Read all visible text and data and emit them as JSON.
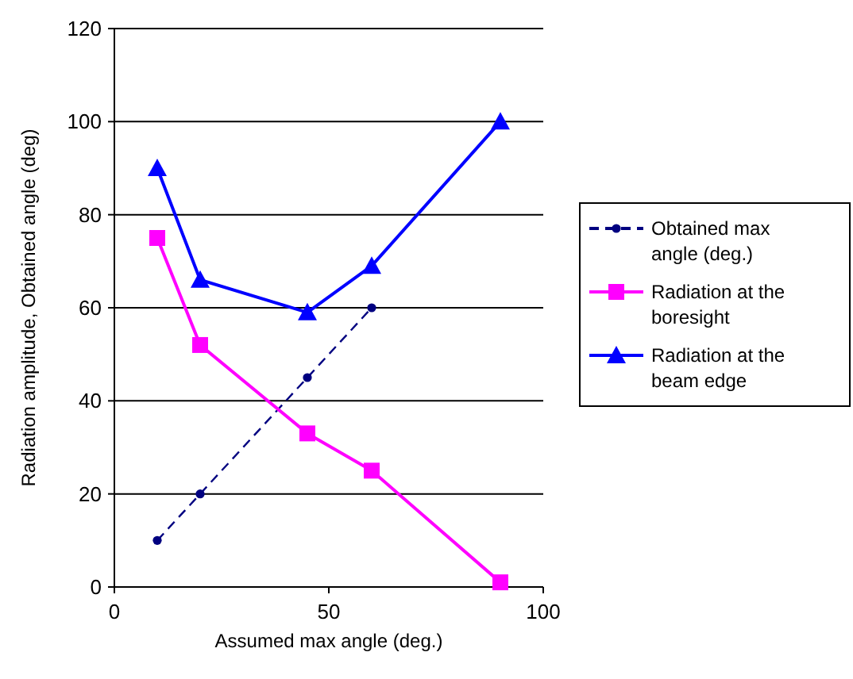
{
  "chart_data": {
    "type": "line",
    "xlabel": "Assumed max angle (deg.)",
    "ylabel": "Radiation amplitude, Obtained angle (deg)",
    "xlim": [
      0,
      100
    ],
    "xticks": [
      0,
      50,
      100
    ],
    "ylim": [
      0,
      120
    ],
    "yticks": [
      0,
      20,
      40,
      60,
      80,
      100,
      120
    ],
    "grid": "y",
    "legend": "right",
    "series": [
      {
        "name": "Obtained max angle (deg.)",
        "color": "#000080",
        "x": [
          10,
          20,
          45,
          60
        ],
        "values": [
          10,
          20,
          45,
          60
        ],
        "marker": "circle",
        "line_style": "dashed"
      },
      {
        "name": "Radiation at the boresight",
        "color": "#ff00ff",
        "x": [
          10,
          20,
          45,
          60,
          90
        ],
        "values": [
          75,
          52,
          33,
          25,
          1
        ],
        "marker": "square",
        "line_style": "solid"
      },
      {
        "name": "Radiation at the beam edge",
        "color": "#0000ff",
        "x": [
          10,
          20,
          45,
          60,
          90
        ],
        "values": [
          90,
          66,
          59,
          69,
          100
        ],
        "marker": "triangle",
        "line_style": "solid"
      }
    ]
  }
}
